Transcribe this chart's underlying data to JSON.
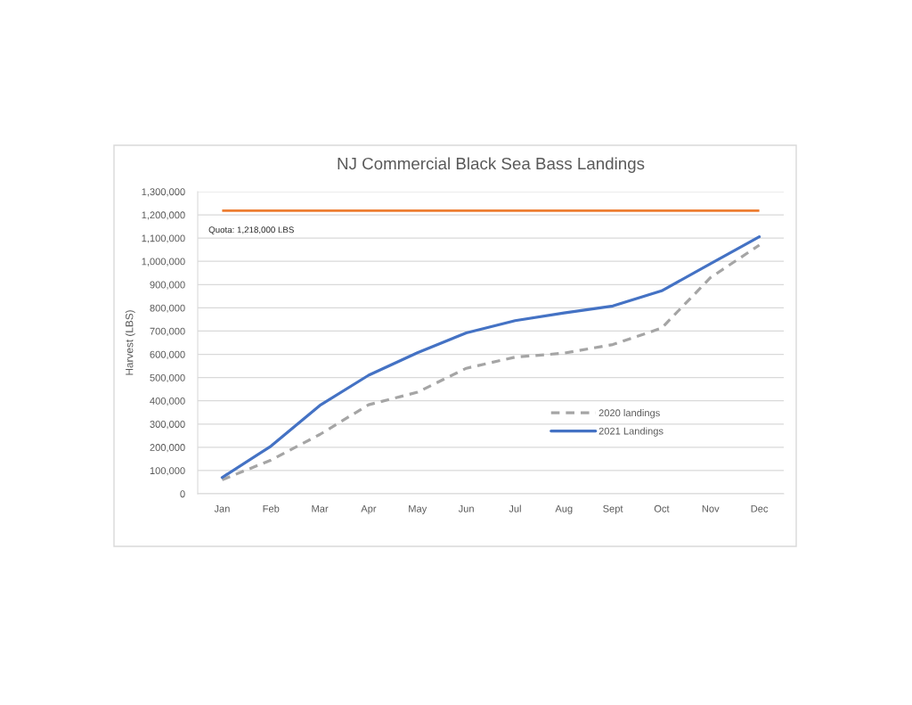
{
  "chart_data": {
    "type": "line",
    "title": "NJ Commercial Black Sea Bass Landings",
    "ylabel": "Harvest (LBS)",
    "categories": [
      "Jan",
      "Feb",
      "Mar",
      "Apr",
      "May",
      "Jun",
      "Jul",
      "Aug",
      "Sept",
      "Oct",
      "Nov",
      "Dec"
    ],
    "series": [
      {
        "name": "2020 landings",
        "color": "#a5a5a5",
        "line_style": "dashed",
        "values": [
          60000,
          145000,
          255000,
          383000,
          437000,
          540000,
          588000,
          605000,
          642000,
          713000,
          930000,
          1070000
        ]
      },
      {
        "name": "2021 Landings",
        "color": "#4472c4",
        "line_style": "solid",
        "values": [
          70000,
          205000,
          380000,
          510000,
          607000,
          692000,
          745000,
          778000,
          808000,
          873000,
          990000,
          1106000
        ]
      }
    ],
    "ref_lines": [
      {
        "axis": "y",
        "value": 1218000,
        "label": "Quota: 1,218,000 LBS",
        "color": "#ed7d31"
      }
    ],
    "ylim": [
      0,
      1300000
    ],
    "yticks": [
      0,
      {
        "value": 100000,
        "label": "100,000"
      },
      {
        "value": 200000,
        "label": "200,000"
      },
      {
        "value": 300000,
        "label": "300,000"
      },
      {
        "value": 400000,
        "label": "400,000"
      },
      {
        "value": 500000,
        "label": "500,000"
      },
      {
        "value": 600000,
        "label": "600,000"
      },
      {
        "value": 700000,
        "label": "700,000"
      },
      {
        "value": 800000,
        "label": "800,000"
      },
      {
        "value": 900000,
        "label": "900,000"
      },
      {
        "value": 1000000,
        "label": "1,000,000"
      },
      {
        "value": 1100000,
        "label": "1,100,000"
      },
      {
        "value": 1200000,
        "label": "1,200,000"
      },
      {
        "value": 1300000,
        "label": "1,300,000"
      }
    ],
    "grid": "y",
    "legend": "bottom right"
  }
}
